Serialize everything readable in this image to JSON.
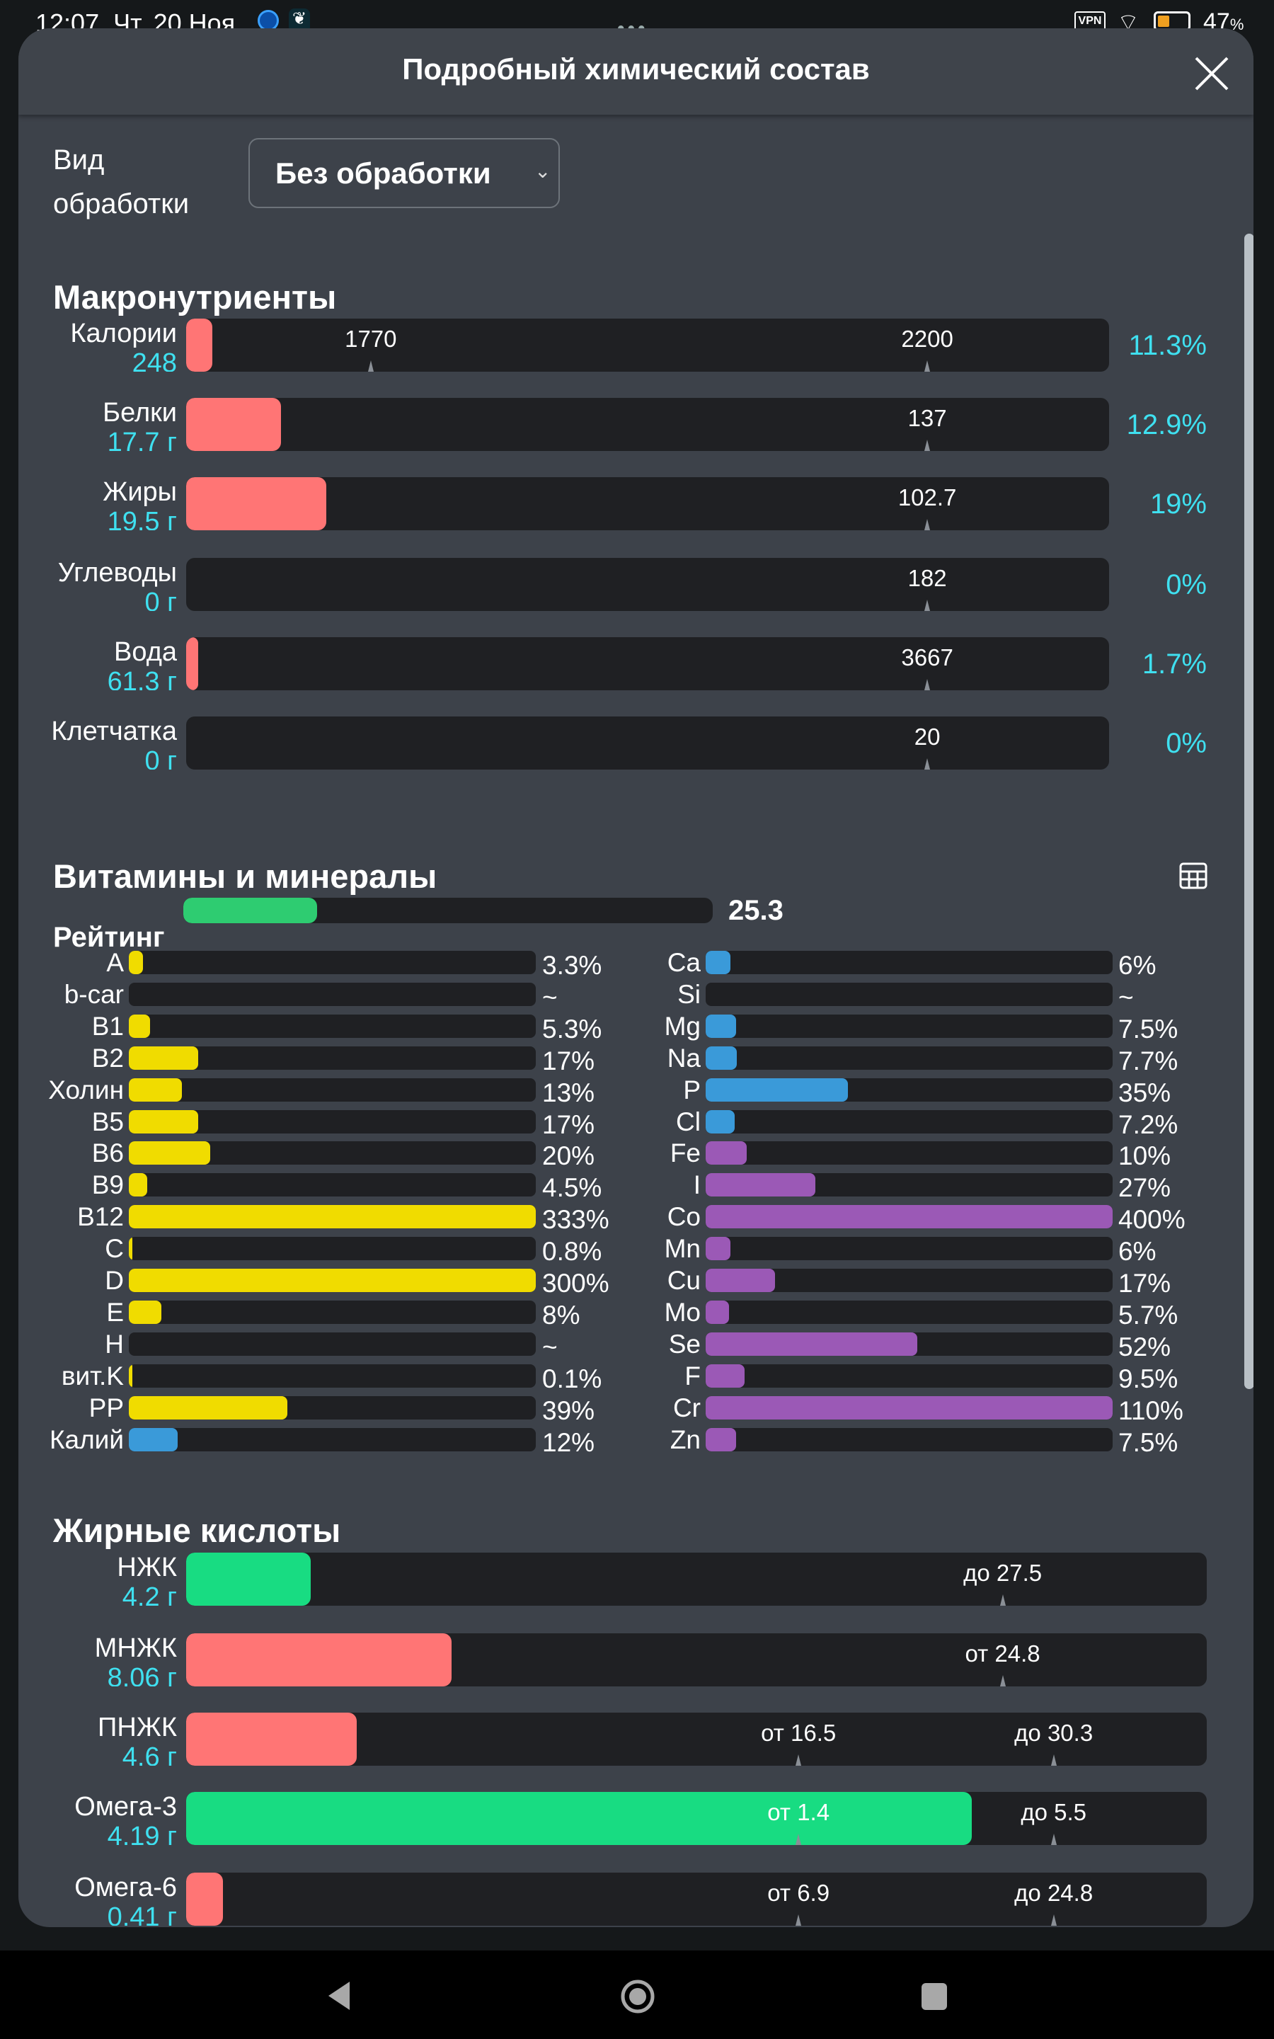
{
  "status": {
    "time": "12:07",
    "date": "Чт, 20 Ноя",
    "vpn": "VPN",
    "battery": "47",
    "battery_unit": "%",
    "battery_level": 0.47
  },
  "dialog": {
    "title": "Подробный химический состав"
  },
  "processing": {
    "label_line1": "Вид",
    "label_line2": "обработки",
    "selected": "Без обработки"
  },
  "macro": {
    "title": "Макронутриенты",
    "accent": "#3fe0f0",
    "fill_color": "#ff7575",
    "rows": [
      {
        "name": "Калории",
        "value": "248",
        "percent": "11.3%",
        "fill": 0.028,
        "markers": [
          "1770",
          "2200"
        ]
      },
      {
        "name": "Белки",
        "value": "17.7 г",
        "percent": "12.9%",
        "fill": 0.103,
        "markers": [
          "137"
        ]
      },
      {
        "name": "Жиры",
        "value": "19.5 г",
        "percent": "19%",
        "fill": 0.152,
        "markers": [
          "102.7"
        ]
      },
      {
        "name": "Углеводы",
        "value": "0 г",
        "percent": "0%",
        "fill": 0,
        "markers": [
          "182"
        ]
      },
      {
        "name": "Вода",
        "value": "61.3 г",
        "percent": "1.7%",
        "fill": 0.013,
        "markers": [
          "3667"
        ]
      },
      {
        "name": "Клетчатка",
        "value": "0 г",
        "percent": "0%",
        "fill": 0,
        "markers": [
          "20"
        ]
      }
    ]
  },
  "vitamins": {
    "title": "Витамины и минералы",
    "table_icon": "table-icon",
    "rating": {
      "label": "Рейтинг",
      "value": "25.3",
      "level": 25.3,
      "color": "#2ecc71"
    },
    "colors": {
      "vitamin": "#f0dc00",
      "mineral_blue": "#3a9ad9",
      "mineral_purple": "#9b59b6"
    },
    "left": [
      {
        "name": "A",
        "pct": "3.3%",
        "v": 3.3,
        "c": "vitamin"
      },
      {
        "name": "b-car",
        "pct": "~",
        "v": 0,
        "c": "vitamin"
      },
      {
        "name": "B1",
        "pct": "5.3%",
        "v": 5.3,
        "c": "vitamin"
      },
      {
        "name": "B2",
        "pct": "17%",
        "v": 17,
        "c": "vitamin"
      },
      {
        "name": "Холин",
        "pct": "13%",
        "v": 13,
        "c": "vitamin"
      },
      {
        "name": "B5",
        "pct": "17%",
        "v": 17,
        "c": "vitamin"
      },
      {
        "name": "B6",
        "pct": "20%",
        "v": 20,
        "c": "vitamin"
      },
      {
        "name": "B9",
        "pct": "4.5%",
        "v": 4.5,
        "c": "vitamin"
      },
      {
        "name": "B12",
        "pct": "333%",
        "v": 333,
        "c": "vitamin"
      },
      {
        "name": "C",
        "pct": "0.8%",
        "v": 0.8,
        "c": "vitamin"
      },
      {
        "name": "D",
        "pct": "300%",
        "v": 300,
        "c": "vitamin"
      },
      {
        "name": "E",
        "pct": "8%",
        "v": 8,
        "c": "vitamin"
      },
      {
        "name": "H",
        "pct": "~",
        "v": 0,
        "c": "vitamin"
      },
      {
        "name": "вит.K",
        "pct": "0.1%",
        "v": 0.1,
        "c": "vitamin"
      },
      {
        "name": "PP",
        "pct": "39%",
        "v": 39,
        "c": "vitamin"
      },
      {
        "name": "Калий",
        "pct": "12%",
        "v": 12,
        "c": "mineral_blue"
      }
    ],
    "right": [
      {
        "name": "Ca",
        "pct": "6%",
        "v": 6,
        "c": "mineral_blue"
      },
      {
        "name": "Si",
        "pct": "~",
        "v": 0,
        "c": "mineral_blue"
      },
      {
        "name": "Mg",
        "pct": "7.5%",
        "v": 7.5,
        "c": "mineral_blue"
      },
      {
        "name": "Na",
        "pct": "7.7%",
        "v": 7.7,
        "c": "mineral_blue"
      },
      {
        "name": "P",
        "pct": "35%",
        "v": 35,
        "c": "mineral_blue"
      },
      {
        "name": "Cl",
        "pct": "7.2%",
        "v": 7.2,
        "c": "mineral_blue"
      },
      {
        "name": "Fe",
        "pct": "10%",
        "v": 10,
        "c": "mineral_purple"
      },
      {
        "name": "I",
        "pct": "27%",
        "v": 27,
        "c": "mineral_purple"
      },
      {
        "name": "Co",
        "pct": "400%",
        "v": 400,
        "c": "mineral_purple"
      },
      {
        "name": "Mn",
        "pct": "6%",
        "v": 6,
        "c": "mineral_purple"
      },
      {
        "name": "Cu",
        "pct": "17%",
        "v": 17,
        "c": "mineral_purple"
      },
      {
        "name": "Mo",
        "pct": "5.7%",
        "v": 5.7,
        "c": "mineral_purple"
      },
      {
        "name": "Se",
        "pct": "52%",
        "v": 52,
        "c": "mineral_purple"
      },
      {
        "name": "F",
        "pct": "9.5%",
        "v": 9.5,
        "c": "mineral_purple"
      },
      {
        "name": "Cr",
        "pct": "110%",
        "v": 110,
        "c": "mineral_purple"
      },
      {
        "name": "Zn",
        "pct": "7.5%",
        "v": 7.5,
        "c": "mineral_purple"
      }
    ]
  },
  "fatty": {
    "title": "Жирные кислоты",
    "good": "#18dc82",
    "bad": "#ff7575",
    "rows": [
      {
        "name": "НЖК",
        "value": "4.2 г",
        "fill": 0.122,
        "status": "good",
        "markers": [
          "до 27.5"
        ]
      },
      {
        "name": "МНЖК",
        "value": "8.06 г",
        "fill": 0.26,
        "status": "bad",
        "markers": [
          "от 24.8"
        ]
      },
      {
        "name": "ПНЖК",
        "value": "4.6 г",
        "fill": 0.167,
        "status": "bad",
        "markers": [
          "от 16.5",
          "до 30.3"
        ]
      },
      {
        "name": "Омега-3",
        "value": "4.19 г",
        "fill": 0.77,
        "status": "good",
        "markers": [
          "от 1.4",
          "до 5.5"
        ]
      },
      {
        "name": "Омега-6",
        "value": "0.41 г",
        "fill": 0.036,
        "status": "bad",
        "markers": [
          "от 6.9",
          "до 24.8"
        ]
      }
    ]
  }
}
